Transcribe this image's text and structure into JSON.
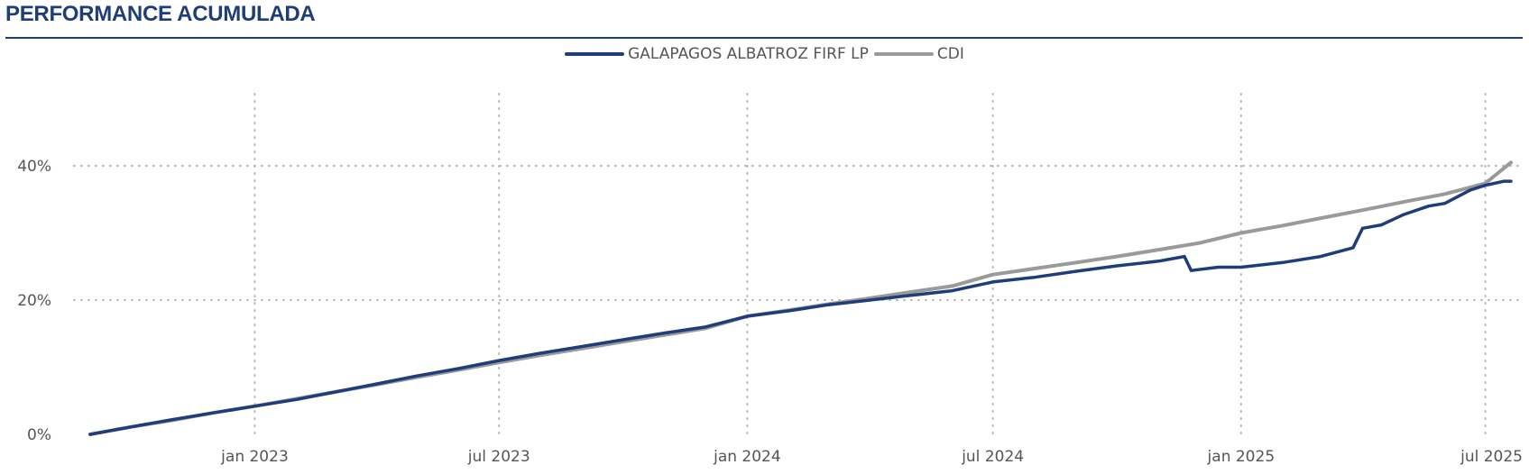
{
  "chart_data": {
    "type": "line",
    "title": "PERFORMANCE ACUMULADA",
    "legend_position": "top-center",
    "grid": true,
    "x_axis": {
      "range": [
        "2022-09-01",
        "2025-07-20"
      ],
      "ticks": [
        {
          "date": "2023-01-01",
          "label": "jan 2023"
        },
        {
          "date": "2023-07-01",
          "label": "jul 2023"
        },
        {
          "date": "2024-01-01",
          "label": "jan 2024"
        },
        {
          "date": "2024-07-01",
          "label": "jul 2024"
        },
        {
          "date": "2025-01-01",
          "label": "jan 2025"
        },
        {
          "date": "2025-07-01",
          "label": "jul 2025"
        }
      ]
    },
    "y_axis": {
      "range": [
        0,
        0.5
      ],
      "ticks": [
        {
          "value": 0,
          "label": "0%"
        },
        {
          "value": 0.2,
          "label": "20%"
        },
        {
          "value": 0.4,
          "label": "40%"
        }
      ]
    },
    "series": [
      {
        "name": "CDI",
        "color": "#9a9a9a",
        "points": [
          [
            "2022-09-01",
            0.0
          ],
          [
            "2022-10-01",
            0.011
          ],
          [
            "2022-11-01",
            0.021
          ],
          [
            "2022-12-01",
            0.032
          ],
          [
            "2023-01-01",
            0.042
          ],
          [
            "2023-02-01",
            0.053
          ],
          [
            "2023-03-01",
            0.063
          ],
          [
            "2023-04-01",
            0.074
          ],
          [
            "2023-05-01",
            0.085
          ],
          [
            "2023-06-01",
            0.096
          ],
          [
            "2023-07-01",
            0.107
          ],
          [
            "2023-08-01",
            0.118
          ],
          [
            "2023-09-01",
            0.128
          ],
          [
            "2023-10-01",
            0.138
          ],
          [
            "2023-11-01",
            0.148
          ],
          [
            "2023-12-01",
            0.158
          ],
          [
            "2024-01-01",
            0.176
          ],
          [
            "2024-02-01",
            0.185
          ],
          [
            "2024-03-01",
            0.194
          ],
          [
            "2024-04-01",
            0.203
          ],
          [
            "2024-05-01",
            0.212
          ],
          [
            "2024-06-01",
            0.221
          ],
          [
            "2024-07-01",
            0.238
          ],
          [
            "2024-08-01",
            0.247
          ],
          [
            "2024-09-01",
            0.256
          ],
          [
            "2024-10-01",
            0.265
          ],
          [
            "2024-11-01",
            0.275
          ],
          [
            "2024-12-01",
            0.285
          ],
          [
            "2025-01-01",
            0.3
          ],
          [
            "2025-02-01",
            0.311
          ],
          [
            "2025-03-01",
            0.322
          ],
          [
            "2025-04-01",
            0.334
          ],
          [
            "2025-05-01",
            0.346
          ],
          [
            "2025-06-01",
            0.358
          ],
          [
            "2025-07-01",
            0.374
          ],
          [
            "2025-07-20",
            0.405
          ]
        ]
      },
      {
        "name": "GALAPAGOS ALBATROZ FIRF LP",
        "color": "#1f3d7a",
        "points": [
          [
            "2022-09-01",
            0.0
          ],
          [
            "2022-10-01",
            0.011
          ],
          [
            "2022-11-01",
            0.022
          ],
          [
            "2022-12-01",
            0.032
          ],
          [
            "2023-01-01",
            0.042
          ],
          [
            "2023-02-01",
            0.052
          ],
          [
            "2023-03-01",
            0.063
          ],
          [
            "2023-04-01",
            0.075
          ],
          [
            "2023-05-01",
            0.087
          ],
          [
            "2023-06-01",
            0.098
          ],
          [
            "2023-07-01",
            0.11
          ],
          [
            "2023-08-01",
            0.121
          ],
          [
            "2023-09-01",
            0.131
          ],
          [
            "2023-10-01",
            0.141
          ],
          [
            "2023-11-01",
            0.151
          ],
          [
            "2023-12-01",
            0.16
          ],
          [
            "2024-01-01",
            0.176
          ],
          [
            "2024-02-01",
            0.184
          ],
          [
            "2024-03-01",
            0.193
          ],
          [
            "2024-04-01",
            0.2
          ],
          [
            "2024-05-01",
            0.207
          ],
          [
            "2024-06-01",
            0.214
          ],
          [
            "2024-07-01",
            0.227
          ],
          [
            "2024-08-01",
            0.234
          ],
          [
            "2024-09-01",
            0.243
          ],
          [
            "2024-10-01",
            0.251
          ],
          [
            "2024-11-01",
            0.258
          ],
          [
            "2024-11-20",
            0.265
          ],
          [
            "2024-11-25",
            0.244
          ],
          [
            "2024-12-15",
            0.249
          ],
          [
            "2025-01-01",
            0.249
          ],
          [
            "2025-02-01",
            0.256
          ],
          [
            "2025-03-01",
            0.265
          ],
          [
            "2025-03-25",
            0.278
          ],
          [
            "2025-04-01",
            0.307
          ],
          [
            "2025-04-15",
            0.312
          ],
          [
            "2025-05-01",
            0.327
          ],
          [
            "2025-05-20",
            0.34
          ],
          [
            "2025-06-01",
            0.344
          ],
          [
            "2025-06-20",
            0.364
          ],
          [
            "2025-07-01",
            0.371
          ],
          [
            "2025-07-15",
            0.377
          ],
          [
            "2025-07-20",
            0.377
          ]
        ]
      }
    ]
  }
}
